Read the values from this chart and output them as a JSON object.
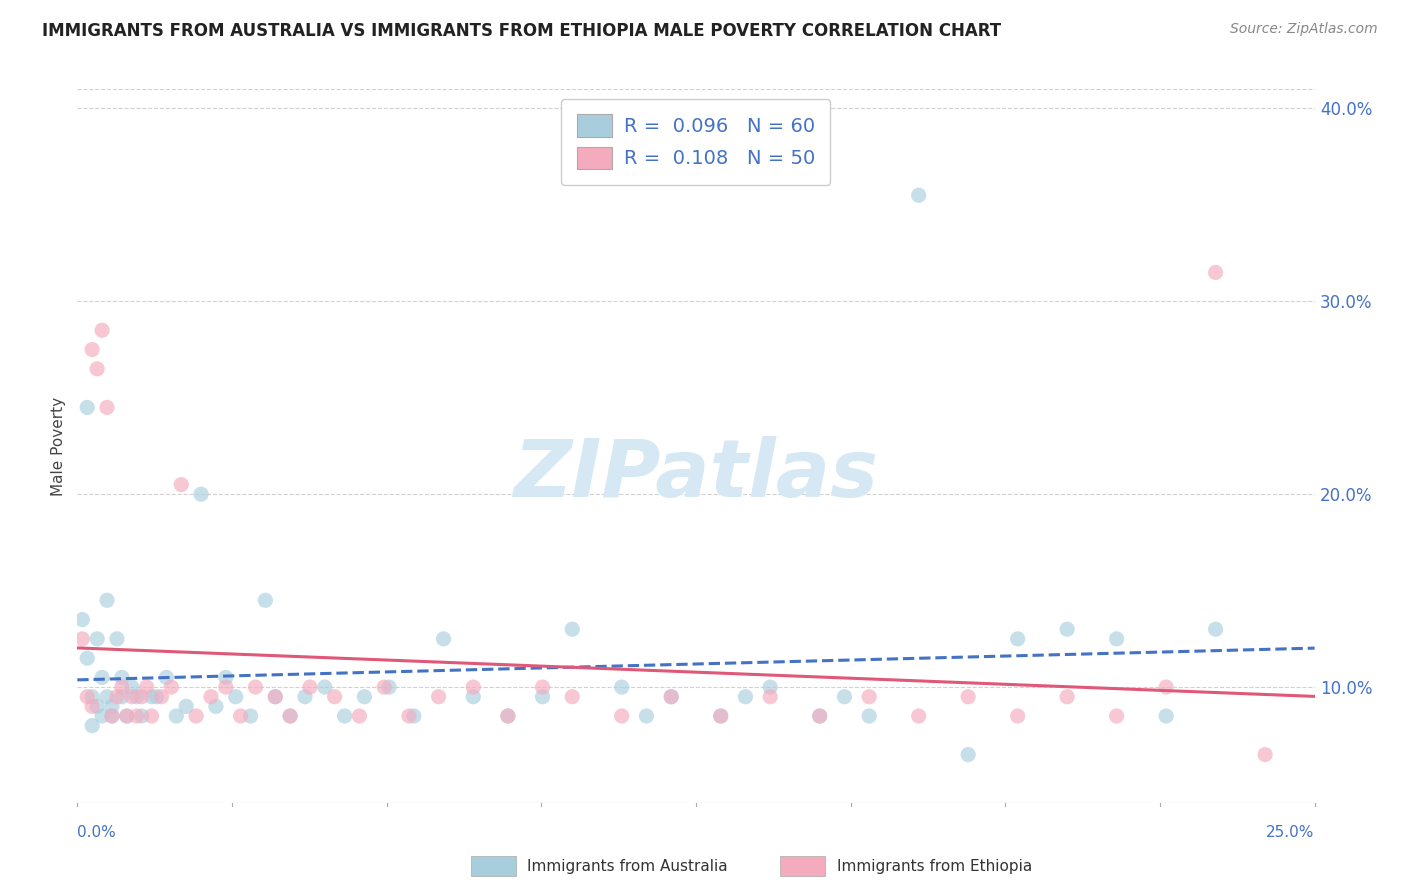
{
  "title": "IMMIGRANTS FROM AUSTRALIA VS IMMIGRANTS FROM ETHIOPIA MALE POVERTY CORRELATION CHART",
  "source": "Source: ZipAtlas.com",
  "ylabel": "Male Poverty",
  "xlim": [
    0.0,
    0.25
  ],
  "ylim": [
    0.04,
    0.41
  ],
  "ytick_positions": [
    0.1,
    0.2,
    0.3,
    0.4
  ],
  "ytick_labels": [
    "10.0%",
    "20.0%",
    "30.0%",
    "40.0%"
  ],
  "xtick_left": "0.0%",
  "xtick_right": "25.0%",
  "australia_color": "#A8CEDE",
  "ethiopia_color": "#F4ABBE",
  "australia_R": 0.096,
  "australia_N": 60,
  "ethiopia_R": 0.108,
  "ethiopia_N": 50,
  "watermark": "ZIPatlas",
  "watermark_color": "#D5E8F3",
  "australia_trend_color": "#4472C4",
  "ethiopia_trend_color": "#E05878",
  "grid_color": "#CCCCCC",
  "axis_color": "#4472C4",
  "title_color": "#222222",
  "source_color": "#888888",
  "background_color": "#FFFFFF",
  "dot_size": 120,
  "australia_x": [
    0.001,
    0.002,
    0.002,
    0.003,
    0.003,
    0.004,
    0.004,
    0.005,
    0.005,
    0.006,
    0.006,
    0.007,
    0.007,
    0.008,
    0.009,
    0.009,
    0.01,
    0.011,
    0.012,
    0.013,
    0.015,
    0.016,
    0.018,
    0.02,
    0.022,
    0.025,
    0.028,
    0.03,
    0.032,
    0.035,
    0.038,
    0.04,
    0.043,
    0.046,
    0.05,
    0.054,
    0.058,
    0.063,
    0.068,
    0.074,
    0.08,
    0.087,
    0.094,
    0.1,
    0.11,
    0.115,
    0.12,
    0.13,
    0.135,
    0.14,
    0.15,
    0.155,
    0.16,
    0.17,
    0.18,
    0.19,
    0.2,
    0.21,
    0.22,
    0.23
  ],
  "australia_y": [
    0.135,
    0.115,
    0.245,
    0.095,
    0.08,
    0.125,
    0.09,
    0.105,
    0.085,
    0.145,
    0.095,
    0.085,
    0.09,
    0.125,
    0.105,
    0.095,
    0.085,
    0.1,
    0.095,
    0.085,
    0.095,
    0.095,
    0.105,
    0.085,
    0.09,
    0.2,
    0.09,
    0.105,
    0.095,
    0.085,
    0.145,
    0.095,
    0.085,
    0.095,
    0.1,
    0.085,
    0.095,
    0.1,
    0.085,
    0.125,
    0.095,
    0.085,
    0.095,
    0.13,
    0.1,
    0.085,
    0.095,
    0.085,
    0.095,
    0.1,
    0.085,
    0.095,
    0.085,
    0.355,
    0.065,
    0.125,
    0.13,
    0.125,
    0.085,
    0.13
  ],
  "ethiopia_x": [
    0.001,
    0.002,
    0.003,
    0.003,
    0.004,
    0.005,
    0.006,
    0.007,
    0.008,
    0.009,
    0.01,
    0.011,
    0.012,
    0.013,
    0.014,
    0.015,
    0.017,
    0.019,
    0.021,
    0.024,
    0.027,
    0.03,
    0.033,
    0.036,
    0.04,
    0.043,
    0.047,
    0.052,
    0.057,
    0.062,
    0.067,
    0.073,
    0.08,
    0.087,
    0.094,
    0.1,
    0.11,
    0.12,
    0.13,
    0.14,
    0.15,
    0.16,
    0.17,
    0.18,
    0.19,
    0.2,
    0.21,
    0.22,
    0.23,
    0.24
  ],
  "ethiopia_y": [
    0.125,
    0.095,
    0.275,
    0.09,
    0.265,
    0.285,
    0.245,
    0.085,
    0.095,
    0.1,
    0.085,
    0.095,
    0.085,
    0.095,
    0.1,
    0.085,
    0.095,
    0.1,
    0.205,
    0.085,
    0.095,
    0.1,
    0.085,
    0.1,
    0.095,
    0.085,
    0.1,
    0.095,
    0.085,
    0.1,
    0.085,
    0.095,
    0.1,
    0.085,
    0.1,
    0.095,
    0.085,
    0.095,
    0.085,
    0.095,
    0.085,
    0.095,
    0.085,
    0.095,
    0.085,
    0.095,
    0.085,
    0.1,
    0.315,
    0.065
  ]
}
